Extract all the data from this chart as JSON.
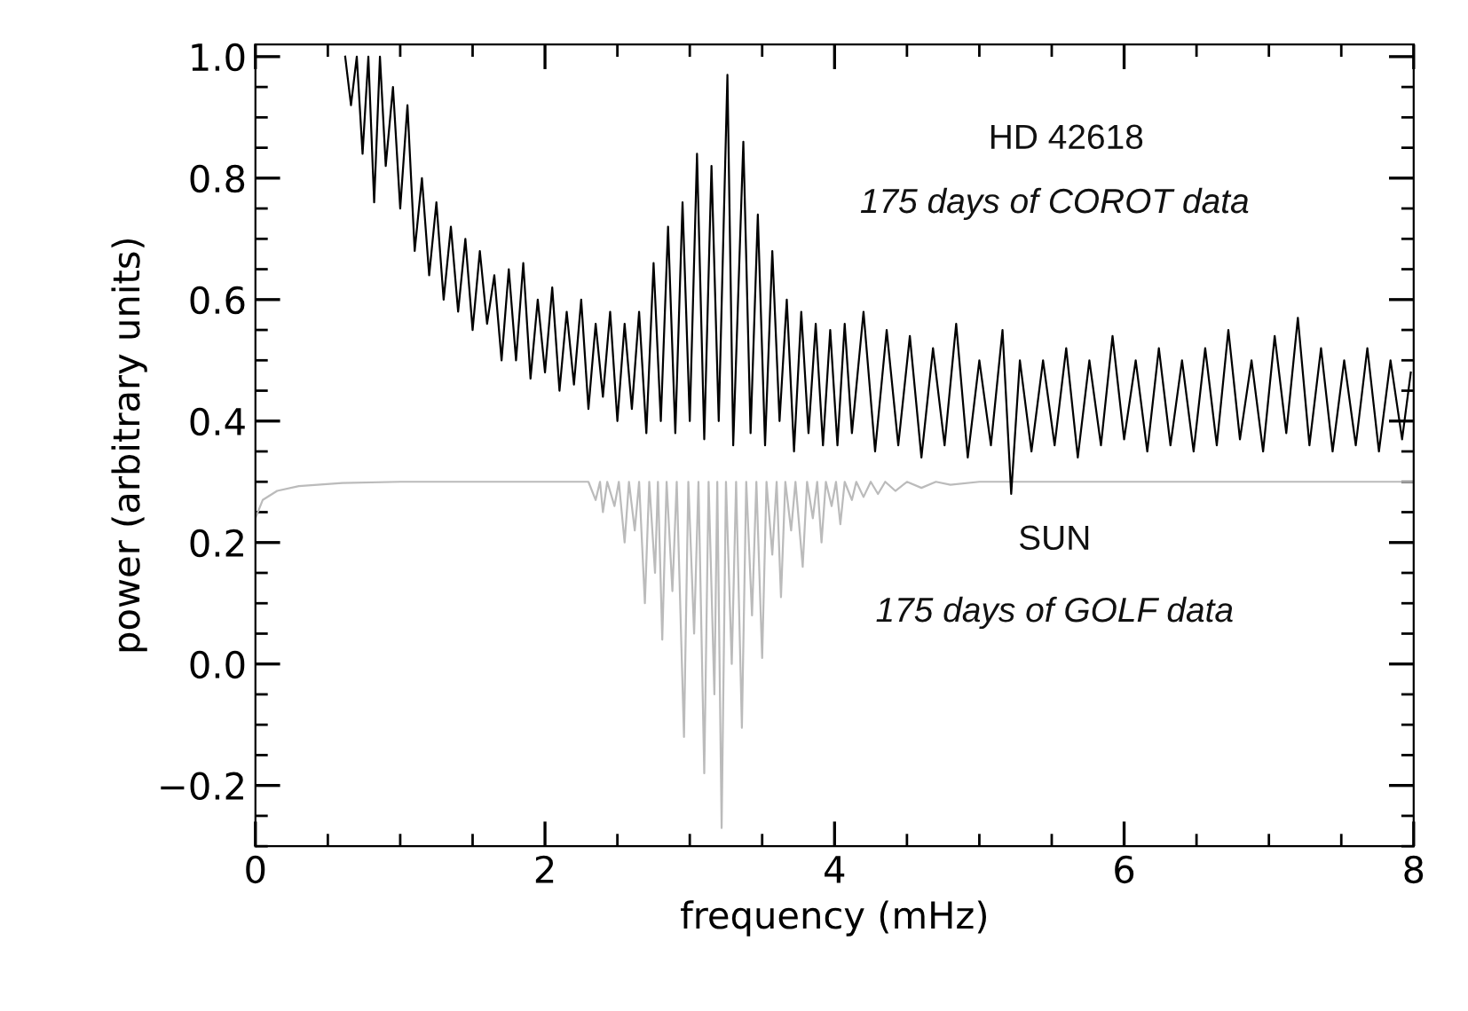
{
  "chart_data": {
    "type": "line",
    "xlabel": "frequency (mHz)",
    "ylabel": "power (arbitrary units)",
    "xlim": [
      0,
      8
    ],
    "ylim": [
      -0.3,
      1.02
    ],
    "xticks": [
      0,
      2,
      4,
      6,
      8
    ],
    "yticks": [
      {
        "value": -0.2,
        "label": "−0.2"
      },
      {
        "value": 0.0,
        "label": "0.0"
      },
      {
        "value": 0.2,
        "label": "0.2"
      },
      {
        "value": 0.4,
        "label": "0.4"
      },
      {
        "value": 0.6,
        "label": "0.6"
      },
      {
        "value": 0.8,
        "label": "0.8"
      },
      {
        "value": 1.0,
        "label": "1.0"
      }
    ],
    "grid": false,
    "legend": false,
    "marker": "none",
    "line_style": "solid",
    "annotations": [
      "HD 42618",
      "175 days of COROT data",
      "SUN",
      "175 days of GOLF data"
    ],
    "series": [
      {
        "color": "#000000",
        "x": [
          0.62,
          0.66,
          0.7,
          0.74,
          0.78,
          0.82,
          0.86,
          0.9,
          0.95,
          1.0,
          1.05,
          1.1,
          1.15,
          1.2,
          1.25,
          1.3,
          1.35,
          1.4,
          1.45,
          1.5,
          1.55,
          1.6,
          1.65,
          1.7,
          1.75,
          1.8,
          1.85,
          1.9,
          1.95,
          2.0,
          2.05,
          2.1,
          2.15,
          2.2,
          2.25,
          2.3,
          2.35,
          2.4,
          2.45,
          2.5,
          2.55,
          2.6,
          2.65,
          2.7,
          2.75,
          2.8,
          2.85,
          2.9,
          2.95,
          3.0,
          3.05,
          3.1,
          3.15,
          3.2,
          3.26,
          3.3,
          3.37,
          3.42,
          3.47,
          3.52,
          3.57,
          3.62,
          3.67,
          3.72,
          3.77,
          3.82,
          3.87,
          3.92,
          3.97,
          4.02,
          4.07,
          4.12,
          4.2,
          4.28,
          4.36,
          4.44,
          4.52,
          4.6,
          4.68,
          4.76,
          4.84,
          4.92,
          5.0,
          5.08,
          5.16,
          5.22,
          5.28,
          5.36,
          5.44,
          5.52,
          5.6,
          5.68,
          5.76,
          5.84,
          5.92,
          6.0,
          6.08,
          6.16,
          6.24,
          6.32,
          6.4,
          6.48,
          6.56,
          6.64,
          6.72,
          6.8,
          6.88,
          6.96,
          7.04,
          7.12,
          7.2,
          7.28,
          7.36,
          7.44,
          7.52,
          7.6,
          7.68,
          7.76,
          7.84,
          7.92,
          7.98
        ],
        "values": [
          1.0,
          0.92,
          1.0,
          0.84,
          1.0,
          0.76,
          1.0,
          0.82,
          0.95,
          0.75,
          0.92,
          0.68,
          0.8,
          0.64,
          0.76,
          0.6,
          0.72,
          0.58,
          0.7,
          0.55,
          0.68,
          0.56,
          0.64,
          0.5,
          0.65,
          0.5,
          0.66,
          0.47,
          0.6,
          0.48,
          0.62,
          0.45,
          0.58,
          0.46,
          0.6,
          0.42,
          0.56,
          0.44,
          0.58,
          0.4,
          0.56,
          0.42,
          0.58,
          0.38,
          0.66,
          0.4,
          0.72,
          0.38,
          0.76,
          0.4,
          0.84,
          0.37,
          0.82,
          0.4,
          0.97,
          0.36,
          0.86,
          0.38,
          0.74,
          0.36,
          0.68,
          0.4,
          0.6,
          0.35,
          0.58,
          0.38,
          0.56,
          0.36,
          0.55,
          0.36,
          0.56,
          0.38,
          0.58,
          0.35,
          0.55,
          0.36,
          0.54,
          0.34,
          0.52,
          0.36,
          0.56,
          0.34,
          0.5,
          0.36,
          0.55,
          0.28,
          0.5,
          0.35,
          0.5,
          0.36,
          0.52,
          0.34,
          0.5,
          0.36,
          0.54,
          0.37,
          0.5,
          0.35,
          0.52,
          0.36,
          0.5,
          0.35,
          0.52,
          0.36,
          0.55,
          0.37,
          0.5,
          0.35,
          0.54,
          0.38,
          0.57,
          0.36,
          0.52,
          0.35,
          0.5,
          0.36,
          0.52,
          0.35,
          0.5,
          0.37,
          0.48
        ]
      },
      {
        "color": "#bbbbbb",
        "x": [
          0,
          0.05,
          0.15,
          0.3,
          0.6,
          1.0,
          2.0,
          2.3,
          2.35,
          2.38,
          2.4,
          2.43,
          2.48,
          2.51,
          2.55,
          2.58,
          2.62,
          2.65,
          2.69,
          2.72,
          2.76,
          2.78,
          2.81,
          2.84,
          2.88,
          2.91,
          2.96,
          2.99,
          3.03,
          3.06,
          3.1,
          3.13,
          3.17,
          3.19,
          3.22,
          3.25,
          3.29,
          3.32,
          3.36,
          3.39,
          3.43,
          3.46,
          3.5,
          3.53,
          3.57,
          3.6,
          3.63,
          3.66,
          3.7,
          3.73,
          3.78,
          3.81,
          3.85,
          3.88,
          3.91,
          3.94,
          3.98,
          4.01,
          4.04,
          4.07,
          4.12,
          4.15,
          4.2,
          4.25,
          4.3,
          4.35,
          4.42,
          4.5,
          4.6,
          4.7,
          4.8,
          5.0,
          8.0
        ],
        "values": [
          0.24,
          0.27,
          0.285,
          0.293,
          0.298,
          0.3,
          0.3,
          0.3,
          0.27,
          0.3,
          0.25,
          0.3,
          0.26,
          0.3,
          0.2,
          0.3,
          0.22,
          0.3,
          0.1,
          0.3,
          0.15,
          0.3,
          0.04,
          0.3,
          0.12,
          0.3,
          -0.12,
          0.3,
          0.05,
          0.3,
          -0.18,
          0.3,
          -0.05,
          0.3,
          -0.27,
          0.3,
          0.0,
          0.3,
          -0.105,
          0.3,
          0.08,
          0.3,
          0.01,
          0.3,
          0.18,
          0.3,
          0.11,
          0.3,
          0.22,
          0.3,
          0.16,
          0.3,
          0.24,
          0.3,
          0.2,
          0.3,
          0.26,
          0.3,
          0.23,
          0.3,
          0.27,
          0.3,
          0.275,
          0.3,
          0.28,
          0.3,
          0.285,
          0.3,
          0.29,
          0.3,
          0.295,
          0.3,
          0.3
        ]
      }
    ]
  }
}
